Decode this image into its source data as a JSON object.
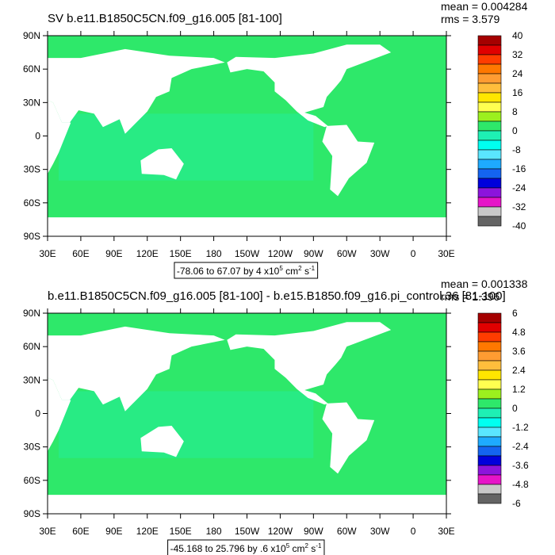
{
  "panels": [
    {
      "title": "SV b.e11.B1850C5CN.f09_g16.005 [81-100]",
      "mean": "mean = 0.004284",
      "rms": "rms = 3.579",
      "lat_labels": [
        "90N",
        "60N",
        "30N",
        "0",
        "30S",
        "60S",
        "90S"
      ],
      "lon_labels": [
        "30E",
        "60E",
        "90E",
        "120E",
        "150E",
        "180",
        "150W",
        "120W",
        "90W",
        "60W",
        "30W",
        "0",
        "30E"
      ],
      "colorbar_labels": [
        "40",
        "32",
        "24",
        "16",
        "8",
        "0",
        "-8",
        "-16",
        "-24",
        "-32",
        "-40"
      ],
      "caption": {
        "main": "-78.06 to 67.07 by 4 x10",
        "exp": "5",
        "unit1": " cm",
        "exp1": "2",
        "unit2": " s",
        "exp2": "-1"
      }
    },
    {
      "title": "b.e11.B1850C5CN.f09_g16.005 [81-100] - b.e15.B1850.f09_g16.pi_control.36 [81-100]",
      "mean": "mean = 0.001338",
      "rms": "rms = 1.396",
      "lat_labels": [
        "90N",
        "60N",
        "30N",
        "0",
        "30S",
        "60S",
        "90S"
      ],
      "lon_labels": [
        "30E",
        "60E",
        "90E",
        "120E",
        "150E",
        "180",
        "150W",
        "120W",
        "90W",
        "60W",
        "30W",
        "0",
        "30E"
      ],
      "colorbar_labels": [
        "6",
        "4.8",
        "3.6",
        "2.4",
        "1.2",
        "0",
        "-1.2",
        "-2.4",
        "-3.6",
        "-4.8",
        "-6"
      ],
      "caption": {
        "main": "-45.168 to 25.796 by .6 x10",
        "exp": "5",
        "unit1": " cm",
        "exp1": "2",
        "unit2": " s",
        "exp2": "-1"
      }
    }
  ],
  "palette": [
    "#a50000",
    "#e00000",
    "#ff3c00",
    "#ff7800",
    "#ff9c32",
    "#ffbe3c",
    "#ffe600",
    "#ffff50",
    "#9cf01e",
    "#2ee86a",
    "#1ef0b4",
    "#00fff0",
    "#5ae6ff",
    "#1eaaff",
    "#1464f0",
    "#0000dc",
    "#8c14dc",
    "#e614c8",
    "#c8c8c8",
    "#646464"
  ]
}
